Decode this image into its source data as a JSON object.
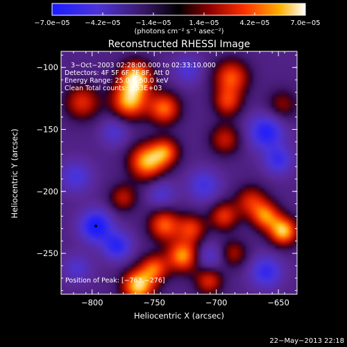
{
  "chart_data": {
    "type": "heatmap",
    "title": "Reconstructed RHESSI Image",
    "xlabel": "Heliocentric X (arcsec)",
    "ylabel": "Heliocentric Y (arcsec)",
    "xlim": [
      -825,
      -635
    ],
    "ylim": [
      -283,
      -87
    ],
    "x_ticks": [
      -800,
      -750,
      -700,
      -650
    ],
    "x_tick_labels": [
      "−800",
      "−750",
      "−700",
      "−650"
    ],
    "y_ticks": [
      -100,
      -150,
      -200,
      -250
    ],
    "y_tick_labels": [
      "−100",
      "−150",
      "−200",
      "−250"
    ],
    "colorbar": {
      "range": [
        -7e-05,
        7e-05
      ],
      "ticks": [
        -7e-05,
        -4.2e-05,
        -1.4e-05,
        1.4e-05,
        4.2e-05,
        7e-05
      ],
      "tick_labels": [
        "−7.0e−05",
        "−4.2e−05",
        "−1.4e−05",
        "1.4e−05",
        "4.2e−05",
        "7.0e−05"
      ],
      "unit_label": "(photons cm⁻² s⁻¹ asec⁻²)"
    },
    "annotations": [
      "3−Oct−2003 02:28:00.000 to 02:33:10.000",
      "Detectors: 4F 5F 6F 7F 8F, Att 0",
      "Energy Range: 25.0 − 50.0 keV",
      "Clean    Total counts: 3.53E+03"
    ],
    "peak_label": "Position of Peak: [−763,−276]",
    "peak_position": [
      -763,
      -276
    ],
    "min_marker": [
      -797,
      -228
    ],
    "intensity_blobs": [
      {
        "x": -765,
        "y": -108,
        "v": 7e-05,
        "s": 9
      },
      {
        "x": -770,
        "y": -127,
        "v": 6.2e-05,
        "s": 10
      },
      {
        "x": -742,
        "y": -133,
        "v": 5e-05,
        "s": 9
      },
      {
        "x": -756,
        "y": -176,
        "v": 6.2e-05,
        "s": 10
      },
      {
        "x": -741,
        "y": -168,
        "v": 4.4e-05,
        "s": 8
      },
      {
        "x": -808,
        "y": -128,
        "v": 3.6e-05,
        "s": 10
      },
      {
        "x": -688,
        "y": -108,
        "v": 4.6e-05,
        "s": 10
      },
      {
        "x": -691,
        "y": -128,
        "v": 3.6e-05,
        "s": 8
      },
      {
        "x": -693,
        "y": -158,
        "v": 3e-05,
        "s": 9
      },
      {
        "x": -672,
        "y": -208,
        "v": 3.4e-05,
        "s": 9
      },
      {
        "x": -660,
        "y": -220,
        "v": 4.8e-05,
        "s": 8
      },
      {
        "x": -646,
        "y": -232,
        "v": 6.6e-05,
        "s": 8
      },
      {
        "x": -694,
        "y": -220,
        "v": 3.8e-05,
        "s": 8
      },
      {
        "x": -742,
        "y": -227,
        "v": 4.8e-05,
        "s": 9
      },
      {
        "x": -720,
        "y": -230,
        "v": 3.8e-05,
        "s": 8
      },
      {
        "x": -727,
        "y": -252,
        "v": 5.8e-05,
        "s": 9
      },
      {
        "x": -750,
        "y": -262,
        "v": 4.4e-05,
        "s": 8
      },
      {
        "x": -763,
        "y": -276,
        "v": 7e-05,
        "s": 9
      },
      {
        "x": -706,
        "y": -272,
        "v": 3.6e-05,
        "s": 8
      },
      {
        "x": -775,
        "y": -205,
        "v": 2.8e-05,
        "s": 8
      },
      {
        "x": -686,
        "y": -250,
        "v": 2.4e-05,
        "s": 8
      },
      {
        "x": -647,
        "y": -130,
        "v": 2e-05,
        "s": 9
      },
      {
        "x": -797,
        "y": -228,
        "v": -6.6e-05,
        "s": 9
      },
      {
        "x": -780,
        "y": -244,
        "v": -5.4e-05,
        "s": 8
      },
      {
        "x": -660,
        "y": -152,
        "v": -5.8e-05,
        "s": 10
      },
      {
        "x": -650,
        "y": -175,
        "v": -4.6e-05,
        "s": 8
      },
      {
        "x": -813,
        "y": -188,
        "v": -4e-05,
        "s": 9
      },
      {
        "x": -723,
        "y": -102,
        "v": -3.6e-05,
        "s": 8
      },
      {
        "x": -710,
        "y": -195,
        "v": -4.2e-05,
        "s": 9
      },
      {
        "x": -706,
        "y": -253,
        "v": -3.6e-05,
        "s": 8
      },
      {
        "x": -660,
        "y": -265,
        "v": -5e-05,
        "s": 9
      },
      {
        "x": -744,
        "y": -202,
        "v": -3.4e-05,
        "s": 8
      },
      {
        "x": -782,
        "y": -152,
        "v": -3.4e-05,
        "s": 8
      },
      {
        "x": -812,
        "y": -262,
        "v": -3.4e-05,
        "s": 8
      }
    ]
  },
  "footer": {
    "timestamp": "22−May−2013 22:18"
  },
  "colors": {
    "background": "#000000",
    "text": "#ffffff"
  }
}
